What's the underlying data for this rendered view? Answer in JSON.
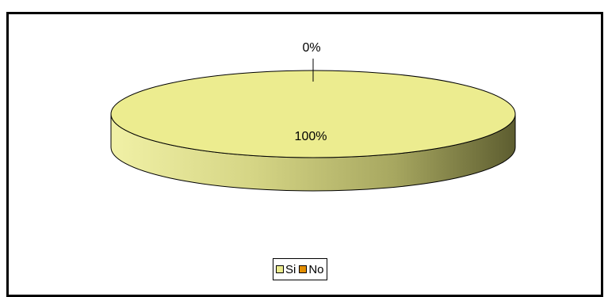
{
  "chart_data": {
    "type": "pie",
    "categories": [
      "Si",
      "No"
    ],
    "values": [
      100,
      0
    ],
    "data_labels": [
      "100%",
      "0%"
    ],
    "colors": [
      "#ecec8f",
      "#e38e00"
    ],
    "legend_position": "bottom",
    "style": "3d"
  }
}
